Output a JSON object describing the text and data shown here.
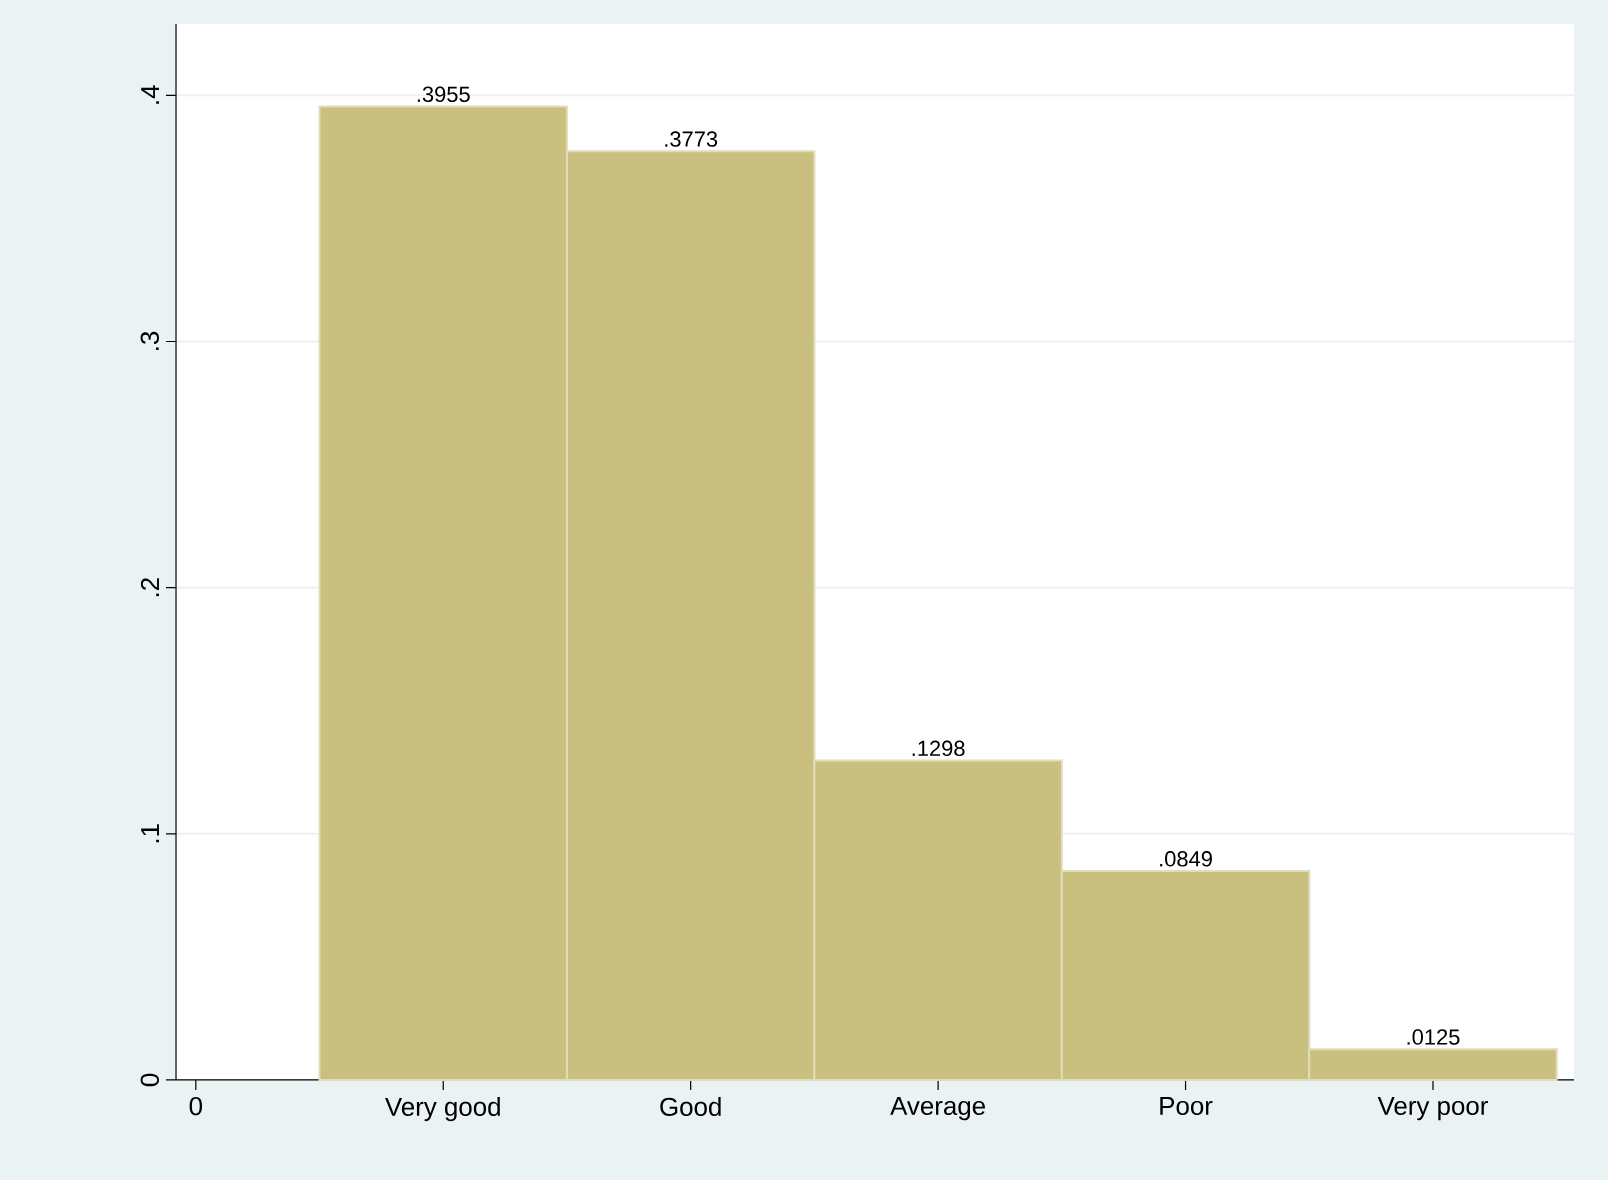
{
  "chart_data": {
    "type": "bar",
    "categories": [
      "0",
      "Very good",
      "Good",
      "Average",
      "Poor",
      "Very poor"
    ],
    "values": [
      null,
      0.3955,
      0.3773,
      0.1298,
      0.0849,
      0.0125
    ],
    "value_labels": [
      null,
      ".3955",
      ".3773",
      ".1298",
      ".0849",
      ".0125"
    ],
    "color": "#c9c07f",
    "ylim": [
      0,
      0.429
    ],
    "yticks": [
      0,
      {
        "value": 0.1,
        "label": ".1"
      },
      {
        "value": 0.2,
        "label": ".2"
      },
      {
        "value": 0.3,
        "label": ".3"
      },
      {
        "value": 0.4,
        "label": ".4"
      }
    ],
    "grid": "y"
  }
}
